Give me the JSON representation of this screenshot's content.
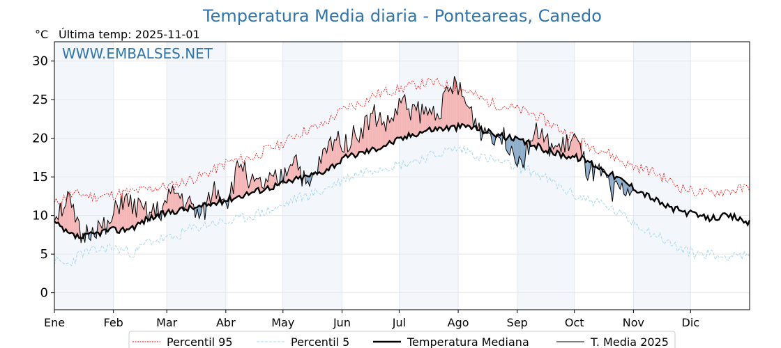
{
  "chart_data": {
    "type": "line",
    "title": "Temperatura Media diaria - Ponteareas, Canedo",
    "ylabel": "°C",
    "last_temp_label": "Última temp: 2025-11-01",
    "watermark": "WWW.EMBALSES.NET",
    "ylim": [
      -2.2,
      32.5
    ],
    "xlim": [
      1,
      366
    ],
    "y_ticks": [
      0,
      5,
      10,
      15,
      20,
      25,
      30
    ],
    "x_ticks": [
      {
        "label": "Ene",
        "day": 1
      },
      {
        "label": "Feb",
        "day": 32
      },
      {
        "label": "Mar",
        "day": 60
      },
      {
        "label": "Abr",
        "day": 91
      },
      {
        "label": "May",
        "day": 121
      },
      {
        "label": "Jun",
        "day": 152
      },
      {
        "label": "Jul",
        "day": 182
      },
      {
        "label": "Ago",
        "day": 213
      },
      {
        "label": "Sep",
        "day": 244
      },
      {
        "label": "Oct",
        "day": 274
      },
      {
        "label": "Nov",
        "day": 305
      },
      {
        "label": "Dic",
        "day": 335
      }
    ],
    "shaded_month_bands": [
      [
        1,
        32
      ],
      [
        60,
        91
      ],
      [
        121,
        152
      ],
      [
        182,
        213
      ],
      [
        244,
        274
      ],
      [
        305,
        335
      ]
    ],
    "series_anchor_step_days": 7,
    "series": [
      {
        "name": "Percentil 95",
        "key": "p95",
        "color": "#ff0000",
        "style": "dotted",
        "anchor_values": [
          11.5,
          12.6,
          12.8,
          12.4,
          12.6,
          12.9,
          13.1,
          13.4,
          13.7,
          13.9,
          14.6,
          15.1,
          15.9,
          16.9,
          17.3,
          17.6,
          18.6,
          19.2,
          20.4,
          21.1,
          21.6,
          22.9,
          24.1,
          24.5,
          25.6,
          26.1,
          26.4,
          26.9,
          27.2,
          27.1,
          26.6,
          26.1,
          25.1,
          24.4,
          24.1,
          23.6,
          23.1,
          22.1,
          21.1,
          20.1,
          19.1,
          18.6,
          17.6,
          16.6,
          16.1,
          15.6,
          14.6,
          13.6,
          13.1,
          12.9,
          13.1,
          13.3,
          13.6,
          14.6
        ]
      },
      {
        "name": "Percentil 5",
        "key": "p5",
        "color": "#a8d8ea",
        "style": "dashed",
        "anchor_values": [
          4.1,
          3.6,
          5.1,
          5.4,
          5.9,
          5.6,
          5.1,
          6.6,
          6.9,
          7.1,
          8.1,
          8.6,
          9.1,
          9.1,
          9.6,
          10.1,
          10.6,
          11.1,
          12.1,
          12.6,
          13.1,
          14.1,
          14.9,
          15.6,
          16.1,
          16.4,
          16.6,
          17.1,
          17.6,
          18.1,
          18.6,
          18.4,
          17.6,
          17.1,
          16.6,
          16.1,
          15.6,
          14.6,
          13.6,
          12.6,
          12.1,
          11.6,
          10.6,
          9.6,
          8.6,
          7.6,
          6.6,
          5.6,
          5.1,
          5.1,
          4.6,
          5.1,
          4.6,
          6.1
        ]
      },
      {
        "name": "Temperatura Mediana",
        "key": "median",
        "color": "#000000",
        "style": "solid-thick",
        "anchor_values": [
          9.1,
          7.6,
          7.1,
          7.6,
          8.1,
          8.1,
          8.6,
          9.6,
          10.1,
          10.6,
          10.9,
          11.1,
          11.6,
          12.1,
          12.6,
          13.1,
          13.6,
          14.1,
          14.6,
          15.1,
          15.6,
          16.6,
          17.6,
          18.1,
          18.6,
          19.3,
          19.9,
          20.6,
          21.1,
          21.3,
          21.4,
          21.6,
          21.1,
          20.6,
          20.1,
          19.6,
          19.1,
          18.4,
          17.9,
          17.6,
          17.1,
          16.1,
          15.1,
          14.1,
          13.1,
          12.1,
          11.1,
          10.6,
          10.1,
          9.6,
          9.9,
          9.8,
          9.1,
          9.6
        ]
      },
      {
        "name": "T. Media 2025",
        "key": "y2025",
        "color": "#000000",
        "style": "solid-thin",
        "anchor_values": [
          10.1,
          12.1,
          7.1,
          8.6,
          8.1,
          12.1,
          11.1,
          10.1,
          10.6,
          13.1,
          11.6,
          9.6,
          13.6,
          12.1,
          17.1,
          13.6,
          14.1,
          14.6,
          18.1,
          13.1,
          17.1,
          20.1,
          19.6,
          21.1,
          23.1,
          21.6,
          24.6,
          23.6,
          23.1,
          24.1,
          27.1,
          24.1,
          21.1,
          20.6,
          19.6,
          17.1,
          21.1,
          19.1,
          18.6,
          20.1,
          15.6,
          15.1,
          13.1
        ],
        "last_day": 305
      }
    ],
    "legend": {
      "placement": "bottom-center",
      "entries": [
        "Percentil 95",
        "Percentil 5",
        "Temperatura Mediana",
        "T. Media 2025"
      ]
    },
    "fill_colors": {
      "above_median": "#f4b6b6",
      "above_p95": "#e06666",
      "below_median": "#8eaecb",
      "below_p5": "#2f5f8a"
    }
  }
}
